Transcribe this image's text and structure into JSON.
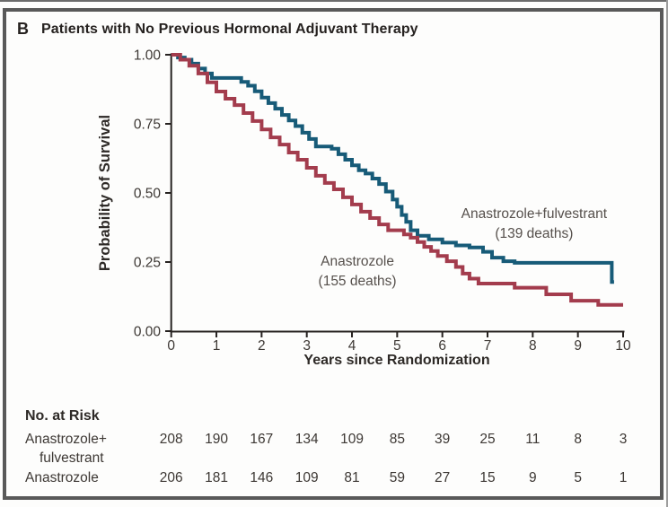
{
  "panel": {
    "label": "B",
    "title": "Patients with No Previous Hormonal Adjuvant Therapy"
  },
  "chart_data": {
    "type": "line",
    "subtype": "kaplan-meier-step",
    "xlabel": "Years since Randomization",
    "ylabel": "Probability of Survival",
    "xlim": [
      0,
      10
    ],
    "ylim": [
      0.0,
      1.0
    ],
    "grid": false,
    "xticks": [
      0,
      1,
      2,
      3,
      4,
      5,
      6,
      7,
      8,
      9,
      10
    ],
    "xtick_labels": [
      "0",
      "1",
      "2",
      "3",
      "4",
      "5",
      "6",
      "7",
      "8",
      "9",
      "10"
    ],
    "yticks": [
      1.0,
      0.75,
      0.5,
      0.25,
      0.0
    ],
    "ytick_labels": [
      "1.00",
      "0.75",
      "0.50",
      "0.25",
      "0.00"
    ],
    "series": [
      {
        "name": "Anastrozole+fulvestrant",
        "deaths": 139,
        "color": "#175b78",
        "annotation_lines": [
          "Anastrozole+fulvestrant",
          "(139 deaths)"
        ],
        "annotation_at": {
          "t": 8.03,
          "s": 0.409
        },
        "points": [
          [
            0,
            1.0
          ],
          [
            0.15,
            0.99
          ],
          [
            0.3,
            0.982
          ],
          [
            0.45,
            0.968
          ],
          [
            0.6,
            0.95
          ],
          [
            0.75,
            0.932
          ],
          [
            0.9,
            0.916
          ],
          [
            1.45,
            0.916
          ],
          [
            1.55,
            0.902
          ],
          [
            1.7,
            0.888
          ],
          [
            1.85,
            0.868
          ],
          [
            2.0,
            0.845
          ],
          [
            2.15,
            0.825
          ],
          [
            2.3,
            0.805
          ],
          [
            2.45,
            0.782
          ],
          [
            2.6,
            0.762
          ],
          [
            2.75,
            0.742
          ],
          [
            2.9,
            0.718
          ],
          [
            3.05,
            0.695
          ],
          [
            3.2,
            0.668
          ],
          [
            3.55,
            0.66
          ],
          [
            3.7,
            0.64
          ],
          [
            3.85,
            0.62
          ],
          [
            4.0,
            0.6
          ],
          [
            4.15,
            0.582
          ],
          [
            4.3,
            0.57
          ],
          [
            4.45,
            0.552
          ],
          [
            4.6,
            0.532
          ],
          [
            4.75,
            0.505
          ],
          [
            4.9,
            0.476
          ],
          [
            5.0,
            0.45
          ],
          [
            5.1,
            0.42
          ],
          [
            5.2,
            0.395
          ],
          [
            5.3,
            0.365
          ],
          [
            5.45,
            0.345
          ],
          [
            5.7,
            0.332
          ],
          [
            6.0,
            0.32
          ],
          [
            6.3,
            0.31
          ],
          [
            6.6,
            0.303
          ],
          [
            6.9,
            0.287
          ],
          [
            7.1,
            0.266
          ],
          [
            7.35,
            0.253
          ],
          [
            7.6,
            0.247
          ],
          [
            9.75,
            0.178
          ],
          [
            9.8,
            0.178
          ]
        ]
      },
      {
        "name": "Anastrozole",
        "deaths": 155,
        "color": "#a33c4d",
        "annotation_lines": [
          "Anastrozole",
          "(155 deaths)"
        ],
        "annotation_at": {
          "t": 4.12,
          "s": 0.237
        },
        "points": [
          [
            0,
            1.0
          ],
          [
            0.2,
            0.982
          ],
          [
            0.4,
            0.96
          ],
          [
            0.6,
            0.932
          ],
          [
            0.8,
            0.9
          ],
          [
            1.0,
            0.867
          ],
          [
            1.2,
            0.841
          ],
          [
            1.4,
            0.818
          ],
          [
            1.6,
            0.789
          ],
          [
            1.8,
            0.76
          ],
          [
            2.0,
            0.73
          ],
          [
            2.2,
            0.701
          ],
          [
            2.4,
            0.675
          ],
          [
            2.6,
            0.646
          ],
          [
            2.8,
            0.62
          ],
          [
            3.0,
            0.591
          ],
          [
            3.2,
            0.562
          ],
          [
            3.4,
            0.536
          ],
          [
            3.6,
            0.513
          ],
          [
            3.8,
            0.484
          ],
          [
            4.0,
            0.458
          ],
          [
            4.2,
            0.432
          ],
          [
            4.4,
            0.409
          ],
          [
            4.6,
            0.386
          ],
          [
            4.8,
            0.365
          ],
          [
            5.15,
            0.35
          ],
          [
            5.3,
            0.338
          ],
          [
            5.45,
            0.322
          ],
          [
            5.6,
            0.305
          ],
          [
            5.75,
            0.29
          ],
          [
            5.9,
            0.272
          ],
          [
            6.1,
            0.253
          ],
          [
            6.3,
            0.232
          ],
          [
            6.45,
            0.208
          ],
          [
            6.6,
            0.19
          ],
          [
            6.8,
            0.172
          ],
          [
            7.6,
            0.157
          ],
          [
            8.3,
            0.133
          ],
          [
            8.85,
            0.11
          ],
          [
            9.45,
            0.095
          ],
          [
            10.0,
            0.095
          ]
        ]
      }
    ]
  },
  "risk_table": {
    "title": "No. at Risk",
    "rows": [
      {
        "label_lines": [
          "Anastrozole+",
          "fulvestrant"
        ],
        "values": [
          208,
          190,
          167,
          134,
          109,
          85,
          39,
          25,
          11,
          8,
          3
        ]
      },
      {
        "label_lines": [
          "Anastrozole"
        ],
        "values": [
          206,
          181,
          146,
          109,
          81,
          59,
          27,
          15,
          9,
          5,
          1
        ]
      }
    ]
  },
  "colors": {
    "frame": "#595959",
    "axis": "#262220",
    "text": "#3d3834",
    "annotation_text": "#56504c",
    "series_blue": "#175b78",
    "series_red": "#a33c4d",
    "background": "#fdfdfc"
  }
}
